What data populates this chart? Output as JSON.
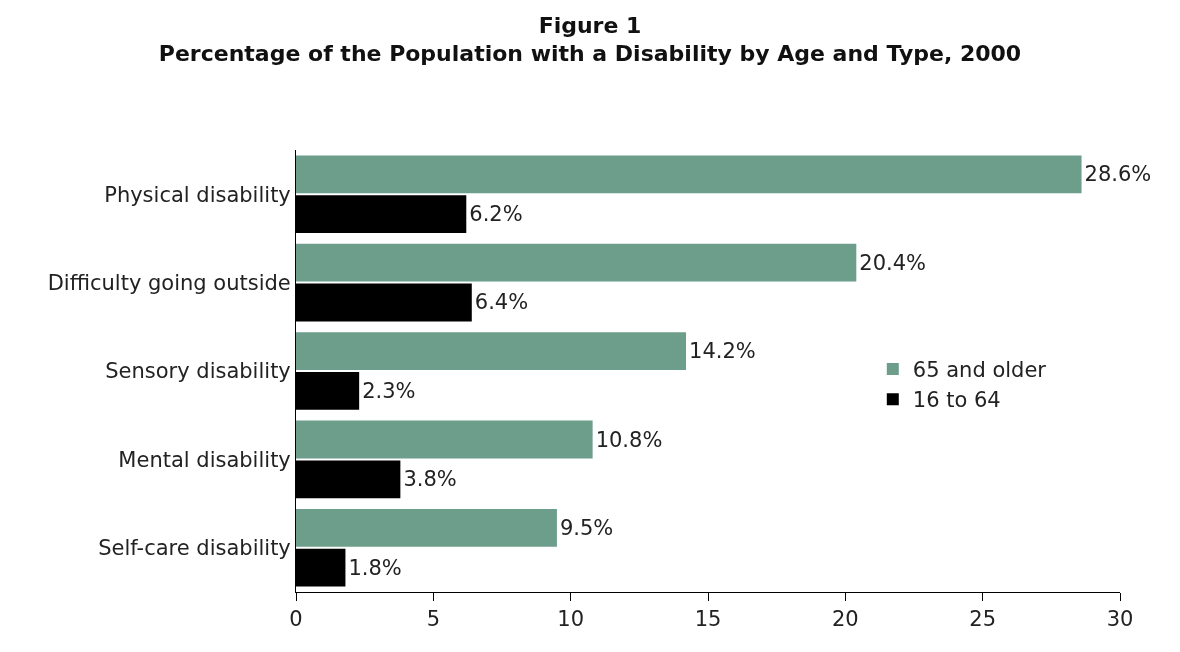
{
  "chart_data": {
    "type": "bar",
    "orientation": "horizontal",
    "title": "Figure 1",
    "subtitle": "Percentage of the Population with a Disability by Age and Type, 2000",
    "categories": [
      "Physical disability",
      "Difficulty going outside",
      "Sensory disability",
      "Mental disability",
      "Self-care disability"
    ],
    "series": [
      {
        "name": "65 and older",
        "color": "#6d9e8b",
        "values": [
          28.6,
          20.4,
          14.2,
          10.8,
          9.5
        ],
        "value_labels": [
          "28.6%",
          "20.4%",
          "14.2%",
          "10.8%",
          "9.5%"
        ]
      },
      {
        "name": "16 to 64",
        "color": "#000000",
        "values": [
          6.2,
          6.4,
          2.3,
          3.8,
          1.8
        ],
        "value_labels": [
          "6.2%",
          "6.4%",
          "2.3%",
          "3.8%",
          "1.8%"
        ]
      }
    ],
    "xlim": [
      0,
      30
    ],
    "xticks": [
      0,
      5,
      10,
      15,
      20,
      25,
      30
    ],
    "grid": false,
    "legend": "right"
  }
}
